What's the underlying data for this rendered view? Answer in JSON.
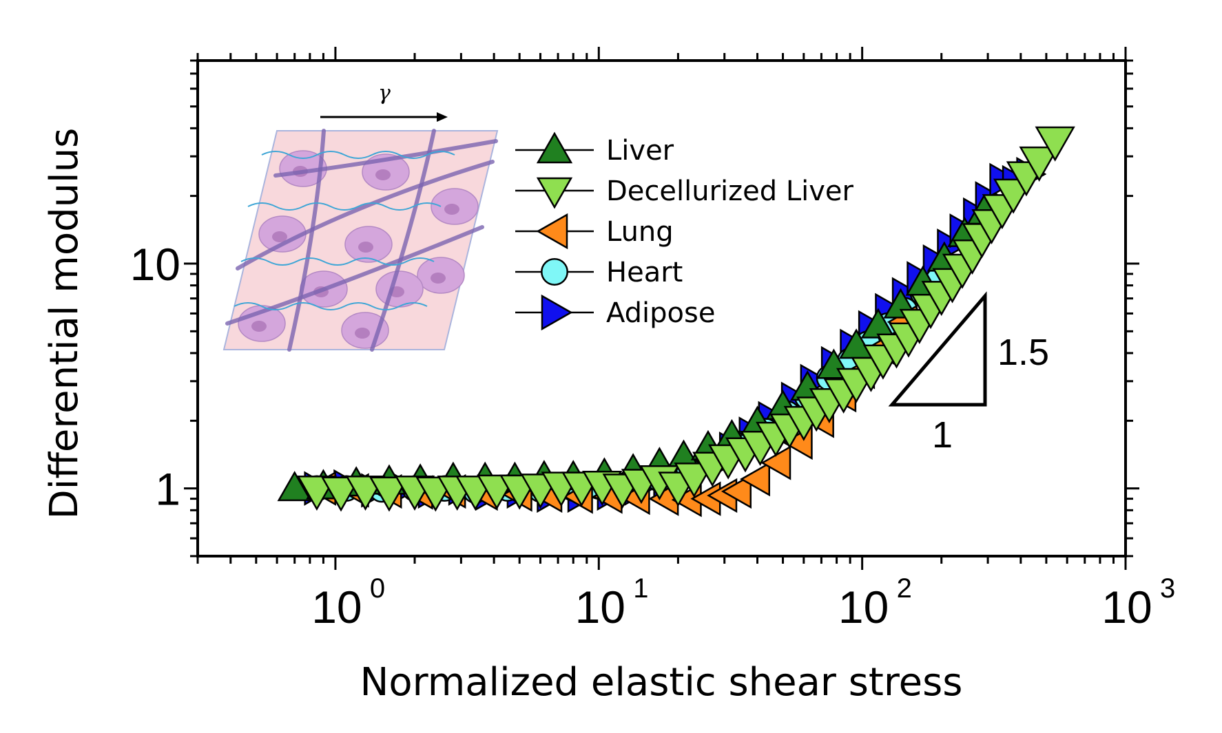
{
  "chart_data": {
    "type": "scatter",
    "xscale": "log",
    "yscale": "log",
    "xlim": [
      0.3,
      1000
    ],
    "ylim": [
      0.5,
      80
    ],
    "xlabel": "Normalized elastic shear stress",
    "ylabel": "Differential modulus",
    "x_ticks": [
      {
        "value": 1,
        "base": "10",
        "exp": "0"
      },
      {
        "value": 10,
        "base": "10",
        "exp": "1"
      },
      {
        "value": 100,
        "base": "10",
        "exp": "2"
      },
      {
        "value": 1000,
        "base": "10",
        "exp": "3"
      }
    ],
    "y_ticks": [
      {
        "value": 1,
        "label": "1"
      },
      {
        "value": 10,
        "label": "10"
      }
    ],
    "legend_position": "top-center",
    "series": [
      {
        "name": "Adipose",
        "marker": "triangle-right",
        "color": "#1010ee",
        "points": [
          [
            0.85,
            1.0
          ],
          [
            1.1,
            1.02
          ],
          [
            1.4,
            0.98
          ],
          [
            1.8,
            1.0
          ],
          [
            2.3,
            0.97
          ],
          [
            3.0,
            1.0
          ],
          [
            3.8,
            0.95
          ],
          [
            5.0,
            0.97
          ],
          [
            6.5,
            0.93
          ],
          [
            8.5,
            0.93
          ],
          [
            11,
            0.95
          ],
          [
            14,
            1.0
          ],
          [
            18,
            1.05
          ],
          [
            22,
            1.15
          ],
          [
            27,
            1.3
          ],
          [
            32,
            1.5
          ],
          [
            38,
            1.75
          ],
          [
            45,
            2.05
          ],
          [
            55,
            2.5
          ],
          [
            65,
            3.0
          ],
          [
            78,
            3.6
          ],
          [
            92,
            4.3
          ],
          [
            108,
            5.2
          ],
          [
            125,
            6.2
          ],
          [
            145,
            7.3
          ],
          [
            165,
            8.6
          ],
          [
            190,
            10.2
          ],
          [
            215,
            12
          ],
          [
            240,
            14
          ],
          [
            270,
            16.5
          ],
          [
            300,
            19.5
          ],
          [
            340,
            23.5
          ],
          [
            380,
            23
          ],
          [
            430,
            25
          ]
        ]
      },
      {
        "name": "Heart",
        "marker": "circle",
        "color": "#7ff7f7",
        "points": [
          [
            0.85,
            1.0
          ],
          [
            1.1,
            1.0
          ],
          [
            1.5,
            0.99
          ],
          [
            2.0,
            1.0
          ],
          [
            2.6,
            1.0
          ],
          [
            3.4,
            0.98
          ],
          [
            4.5,
            1.0
          ],
          [
            6.0,
            0.99
          ],
          [
            8.0,
            1.0
          ],
          [
            10,
            1.02
          ],
          [
            13,
            1.05
          ],
          [
            17,
            1.1
          ],
          [
            22,
            1.2
          ],
          [
            28,
            1.35
          ],
          [
            35,
            1.55
          ],
          [
            43,
            1.8
          ],
          [
            52,
            2.15
          ],
          [
            62,
            2.55
          ],
          [
            75,
            3.1
          ],
          [
            90,
            3.7
          ],
          [
            105,
            4.4
          ],
          [
            125,
            5.3
          ],
          [
            145,
            6.2
          ],
          [
            170,
            7.4
          ],
          [
            195,
            8.5
          ],
          [
            220,
            9.5
          ]
        ]
      },
      {
        "name": "Lung",
        "marker": "triangle-left",
        "color": "#ff8a1a",
        "points": [
          [
            0.9,
            1.0
          ],
          [
            1.2,
            0.98
          ],
          [
            1.6,
            0.97
          ],
          [
            2.1,
            0.96
          ],
          [
            2.8,
            0.97
          ],
          [
            3.7,
            0.95
          ],
          [
            5.0,
            0.94
          ],
          [
            6.5,
            0.93
          ],
          [
            8.5,
            0.92
          ],
          [
            11,
            0.92
          ],
          [
            14,
            0.91
          ],
          [
            18,
            0.9
          ],
          [
            22,
            0.89
          ],
          [
            26,
            0.9
          ],
          [
            30,
            0.93
          ],
          [
            34,
            0.97
          ],
          [
            40,
            1.1
          ],
          [
            48,
            1.3
          ],
          [
            58,
            1.6
          ],
          [
            70,
            2.0
          ],
          [
            85,
            2.6
          ],
          [
            100,
            3.3
          ],
          [
            120,
            4.2
          ],
          [
            145,
            5.5
          ]
        ]
      },
      {
        "name": "Liver",
        "marker": "triangle-up",
        "color": "#208020",
        "points": [
          [
            0.7,
            1.0
          ],
          [
            0.9,
            1.02
          ],
          [
            1.2,
            1.05
          ],
          [
            1.6,
            1.07
          ],
          [
            2.1,
            1.08
          ],
          [
            2.8,
            1.1
          ],
          [
            3.7,
            1.1
          ],
          [
            4.8,
            1.1
          ],
          [
            6.2,
            1.12
          ],
          [
            8.0,
            1.12
          ],
          [
            10.5,
            1.15
          ],
          [
            13.5,
            1.2
          ],
          [
            17,
            1.28
          ],
          [
            21,
            1.38
          ],
          [
            26,
            1.52
          ],
          [
            32,
            1.7
          ],
          [
            40,
            1.95
          ],
          [
            50,
            2.3
          ],
          [
            62,
            2.8
          ],
          [
            78,
            3.5
          ],
          [
            95,
            4.3
          ],
          [
            115,
            5.3
          ],
          [
            140,
            6.5
          ],
          [
            170,
            8.2
          ],
          [
            205,
            10.5
          ],
          [
            245,
            13.5
          ],
          [
            290,
            17
          ]
        ]
      },
      {
        "name": "Decellurized Liver",
        "marker": "triangle-down",
        "color": "#8fdf50",
        "points": [
          [
            0.85,
            0.98
          ],
          [
            1.05,
            0.97
          ],
          [
            1.3,
            0.98
          ],
          [
            1.6,
            0.97
          ],
          [
            2.0,
            0.98
          ],
          [
            2.4,
            0.97
          ],
          [
            2.9,
            0.98
          ],
          [
            3.4,
            0.98
          ],
          [
            4.1,
            0.99
          ],
          [
            5.0,
            0.99
          ],
          [
            6.0,
            1.0
          ],
          [
            7.2,
            1.02
          ],
          [
            8.6,
            1.02
          ],
          [
            10.3,
            1.03
          ],
          [
            12.3,
            1.0
          ],
          [
            14.5,
            1.05
          ],
          [
            17,
            1.09
          ],
          [
            20,
            1.02
          ],
          [
            23,
            1.12
          ],
          [
            27,
            1.25
          ],
          [
            31,
            1.35
          ],
          [
            36,
            1.45
          ],
          [
            41,
            1.55
          ],
          [
            47,
            1.7
          ],
          [
            53,
            1.85
          ],
          [
            60,
            2.0
          ],
          [
            67,
            2.2
          ],
          [
            75,
            2.4
          ],
          [
            85,
            2.65
          ],
          [
            95,
            2.95
          ],
          [
            108,
            3.3
          ],
          [
            120,
            3.75
          ],
          [
            135,
            4.2
          ],
          [
            150,
            4.7
          ],
          [
            165,
            5.4
          ],
          [
            182,
            6.3
          ],
          [
            200,
            7.2
          ],
          [
            220,
            8.2
          ],
          [
            240,
            9.5
          ],
          [
            262,
            11
          ],
          [
            285,
            13
          ],
          [
            310,
            15
          ],
          [
            340,
            17.5
          ],
          [
            375,
            20.5
          ],
          [
            420,
            24.5
          ],
          [
            470,
            28.5
          ],
          [
            540,
            35
          ]
        ]
      }
    ],
    "slope_annotation": {
      "rise_label": "1.5",
      "run_label": "1"
    },
    "inset": {
      "arrow_label": "γ"
    }
  }
}
